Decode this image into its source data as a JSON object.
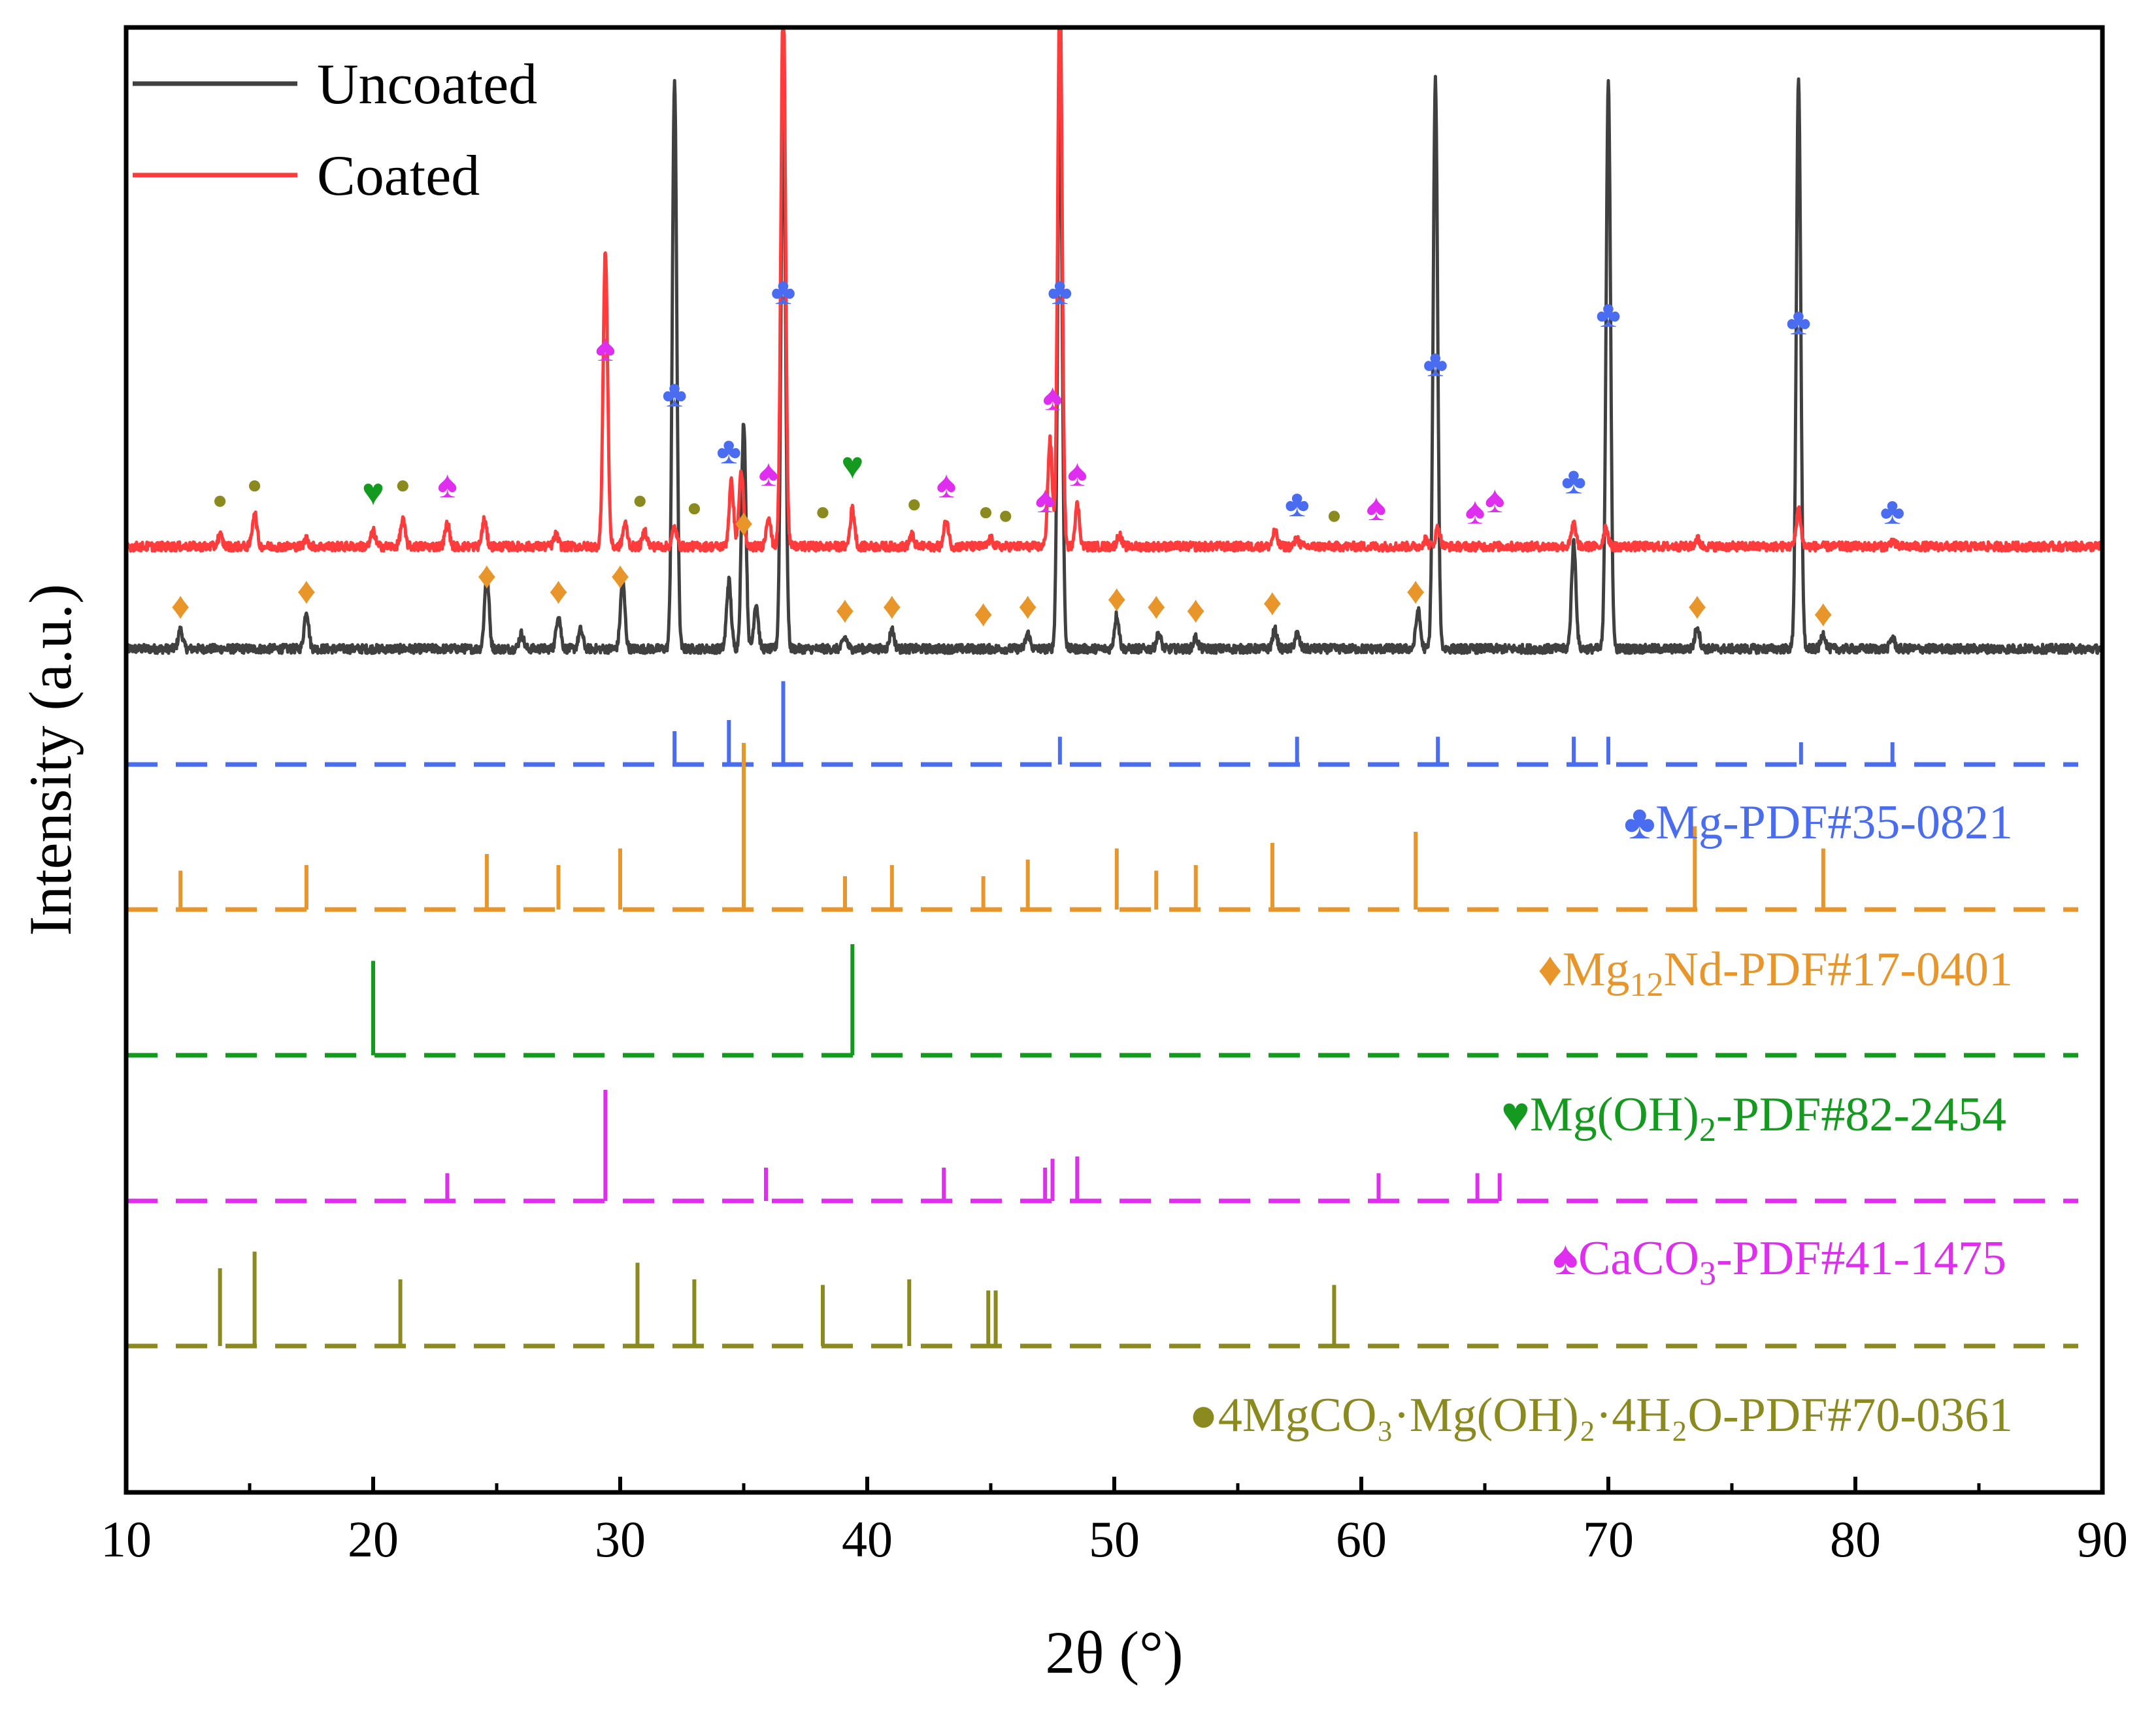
{
  "chart_data": {
    "type": "line",
    "title": "",
    "xlabel": "2θ (°)",
    "ylabel": "Intensity (a.u.)",
    "xlim": [
      10,
      90
    ],
    "xticks": [
      10,
      20,
      30,
      40,
      50,
      60,
      70,
      80,
      90
    ],
    "yticks_shown": false,
    "legend": {
      "placement": "top-left",
      "entries": [
        {
          "name": "Uncoated",
          "color": "#404040"
        },
        {
          "name": "Coated",
          "color": "#ff3b3b"
        }
      ]
    },
    "series": [
      {
        "name": "Uncoated",
        "color": "#404040",
        "baseline": 0.15,
        "noise": 0.012,
        "peaks": [
          [
            12.2,
            0.05
          ],
          [
            17.3,
            0.1
          ],
          [
            24.6,
            0.2
          ],
          [
            26.0,
            0.04
          ],
          [
            27.5,
            0.09
          ],
          [
            28.4,
            0.05
          ],
          [
            30.1,
            0.18
          ],
          [
            32.2,
            1.5
          ],
          [
            34.4,
            0.18
          ],
          [
            35.0,
            0.6
          ],
          [
            35.5,
            0.12
          ],
          [
            36.6,
            1.5
          ],
          [
            39.1,
            0.03
          ],
          [
            41.0,
            0.05
          ],
          [
            46.5,
            0.04
          ],
          [
            47.8,
            1.5
          ],
          [
            50.1,
            0.09
          ],
          [
            51.8,
            0.04
          ],
          [
            53.3,
            0.03
          ],
          [
            56.5,
            0.05
          ],
          [
            57.4,
            0.04
          ],
          [
            62.3,
            0.1
          ],
          [
            63.0,
            1.5
          ],
          [
            68.6,
            0.28
          ],
          [
            70.0,
            1.5
          ],
          [
            73.6,
            0.06
          ],
          [
            77.7,
            1.5
          ],
          [
            78.7,
            0.04
          ],
          [
            81.5,
            0.03
          ]
        ]
      },
      {
        "name": "Coated",
        "color": "#ff3b3b",
        "baseline": 0.42,
        "noise": 0.012,
        "peaks": [
          [
            13.8,
            0.03
          ],
          [
            15.2,
            0.09
          ],
          [
            17.3,
            0.02
          ],
          [
            20.0,
            0.04
          ],
          [
            21.2,
            0.07
          ],
          [
            23.0,
            0.06
          ],
          [
            24.5,
            0.07
          ],
          [
            27.4,
            0.03
          ],
          [
            29.4,
            0.78
          ],
          [
            30.2,
            0.06
          ],
          [
            31.0,
            0.04
          ],
          [
            32.2,
            0.05
          ],
          [
            34.5,
            0.17
          ],
          [
            34.9,
            0.2
          ],
          [
            36.0,
            0.08
          ],
          [
            36.6,
            1.5
          ],
          [
            39.4,
            0.1
          ],
          [
            41.8,
            0.03
          ],
          [
            43.2,
            0.07
          ],
          [
            45.0,
            0.02
          ],
          [
            47.4,
            0.28
          ],
          [
            47.8,
            1.5
          ],
          [
            48.5,
            0.11
          ],
          [
            50.2,
            0.03
          ],
          [
            56.5,
            0.04
          ],
          [
            57.4,
            0.02
          ],
          [
            62.6,
            0.02
          ],
          [
            63.1,
            0.05
          ],
          [
            68.6,
            0.06
          ],
          [
            69.9,
            0.05
          ],
          [
            73.6,
            0.02
          ],
          [
            77.7,
            0.1
          ],
          [
            81.5,
            0.015
          ]
        ]
      }
    ],
    "reference_patterns": [
      {
        "name": "Mg-PDF#35-0821",
        "label_symbol": "♣",
        "label_main": "Mg-PDF#35-0821",
        "color": "#4a6cf0",
        "marker": "♣",
        "lines": [
          [
            32.2,
            0.3
          ],
          [
            34.4,
            0.4
          ],
          [
            36.6,
            0.75
          ],
          [
            47.8,
            0.25
          ],
          [
            57.4,
            0.25
          ],
          [
            63.1,
            0.25
          ],
          [
            68.6,
            0.25
          ],
          [
            70.0,
            0.25
          ],
          [
            77.8,
            0.2
          ],
          [
            81.5,
            0.2
          ]
        ]
      },
      {
        "name": "Mg12Nd-PDF#17-0401",
        "label_symbol": "♦",
        "label_parts": [
          "Mg",
          "12",
          "Nd-PDF#17-0401"
        ],
        "color": "#e8962a",
        "marker": "♦",
        "lines": [
          [
            12.2,
            0.35
          ],
          [
            17.3,
            0.4
          ],
          [
            24.6,
            0.5
          ],
          [
            27.5,
            0.4
          ],
          [
            30.0,
            0.55
          ],
          [
            35.0,
            1.5
          ],
          [
            39.1,
            0.3
          ],
          [
            41.0,
            0.4
          ],
          [
            44.7,
            0.3
          ],
          [
            46.5,
            0.45
          ],
          [
            50.1,
            0.55
          ],
          [
            51.7,
            0.35
          ],
          [
            53.3,
            0.4
          ],
          [
            56.4,
            0.6
          ],
          [
            62.2,
            0.7
          ],
          [
            73.5,
            0.75
          ],
          [
            78.7,
            0.55
          ]
        ]
      },
      {
        "name": "Mg(OH)2-PDF#82-2454",
        "label_symbol": "♥",
        "label_parts": [
          "Mg(OH)",
          "2",
          "-PDF#82-2454"
        ],
        "color": "#139a1f",
        "marker": "♥",
        "lines": [
          [
            20.0,
            0.85
          ],
          [
            39.4,
            1.0
          ]
        ]
      },
      {
        "name": "CaCO3-PDF#41-1475",
        "label_symbol": "♠",
        "label_parts": [
          "CaCO",
          "3",
          "-PDF#41-1475"
        ],
        "color": "#e02ef0",
        "marker": "♠",
        "lines": [
          [
            23.0,
            0.25
          ],
          [
            29.4,
            1.0
          ],
          [
            35.9,
            0.3
          ],
          [
            43.1,
            0.3
          ],
          [
            47.2,
            0.3
          ],
          [
            47.5,
            0.38
          ],
          [
            48.5,
            0.4
          ],
          [
            60.7,
            0.25
          ],
          [
            64.7,
            0.25
          ],
          [
            65.6,
            0.25
          ]
        ]
      },
      {
        "name": "4MgCO3·Mg(OH)2·4H2O-PDF#70-0361",
        "label_symbol": "●",
        "label_main": "4MgCO₃·Mg(OH)₂·4H₂O-PDF#70-0361",
        "color": "#8a8a1e",
        "marker": "●",
        "lines": [
          [
            13.8,
            0.7
          ],
          [
            15.2,
            0.85
          ],
          [
            21.1,
            0.6
          ],
          [
            30.7,
            0.75
          ],
          [
            33.0,
            0.6
          ],
          [
            38.2,
            0.55
          ],
          [
            41.7,
            0.6
          ],
          [
            44.9,
            0.5
          ],
          [
            45.2,
            0.5
          ],
          [
            58.9,
            0.55
          ]
        ]
      }
    ],
    "annotations": [
      {
        "symbol": "♣",
        "color": "#4a6cf0",
        "x": [
          32.2,
          34.4,
          36.6,
          47.8,
          57.4,
          63.0,
          68.6,
          70.0,
          77.7,
          81.5
        ],
        "y": [
          0.79,
          0.64,
          1.06,
          1.06,
          0.5,
          0.87,
          0.56,
          1.0,
          0.98,
          0.48
        ]
      },
      {
        "symbol": "♦",
        "color": "#e8962a",
        "x": [
          12.2,
          17.3,
          24.6,
          27.5,
          30.0,
          35.0,
          39.1,
          41.0,
          44.7,
          46.5,
          50.1,
          51.7,
          53.3,
          56.4,
          62.2,
          73.6,
          78.7
        ],
        "y": [
          0.23,
          0.27,
          0.31,
          0.27,
          0.31,
          0.45,
          0.22,
          0.23,
          0.21,
          0.23,
          0.25,
          0.23,
          0.22,
          0.24,
          0.27,
          0.23,
          0.21
        ]
      },
      {
        "symbol": "♥",
        "color": "#139a1f",
        "x": [
          20.0,
          39.4
        ],
        "y": [
          0.53,
          0.6
        ]
      },
      {
        "symbol": "♠",
        "color": "#e02ef0",
        "x": [
          23.0,
          29.4,
          36.0,
          43.2,
          47.2,
          47.5,
          48.5,
          60.6,
          64.6,
          65.4
        ],
        "y": [
          0.55,
          0.91,
          0.58,
          0.55,
          0.51,
          0.78,
          0.58,
          0.49,
          0.48,
          0.51
        ]
      },
      {
        "symbol": "●",
        "color": "#8a8a1e",
        "x": [
          13.8,
          15.2,
          21.2,
          30.8,
          33.0,
          38.2,
          41.9,
          44.8,
          45.6,
          58.9
        ],
        "y": [
          0.52,
          0.56,
          0.56,
          0.52,
          0.5,
          0.49,
          0.51,
          0.49,
          0.48,
          0.48
        ]
      }
    ]
  }
}
